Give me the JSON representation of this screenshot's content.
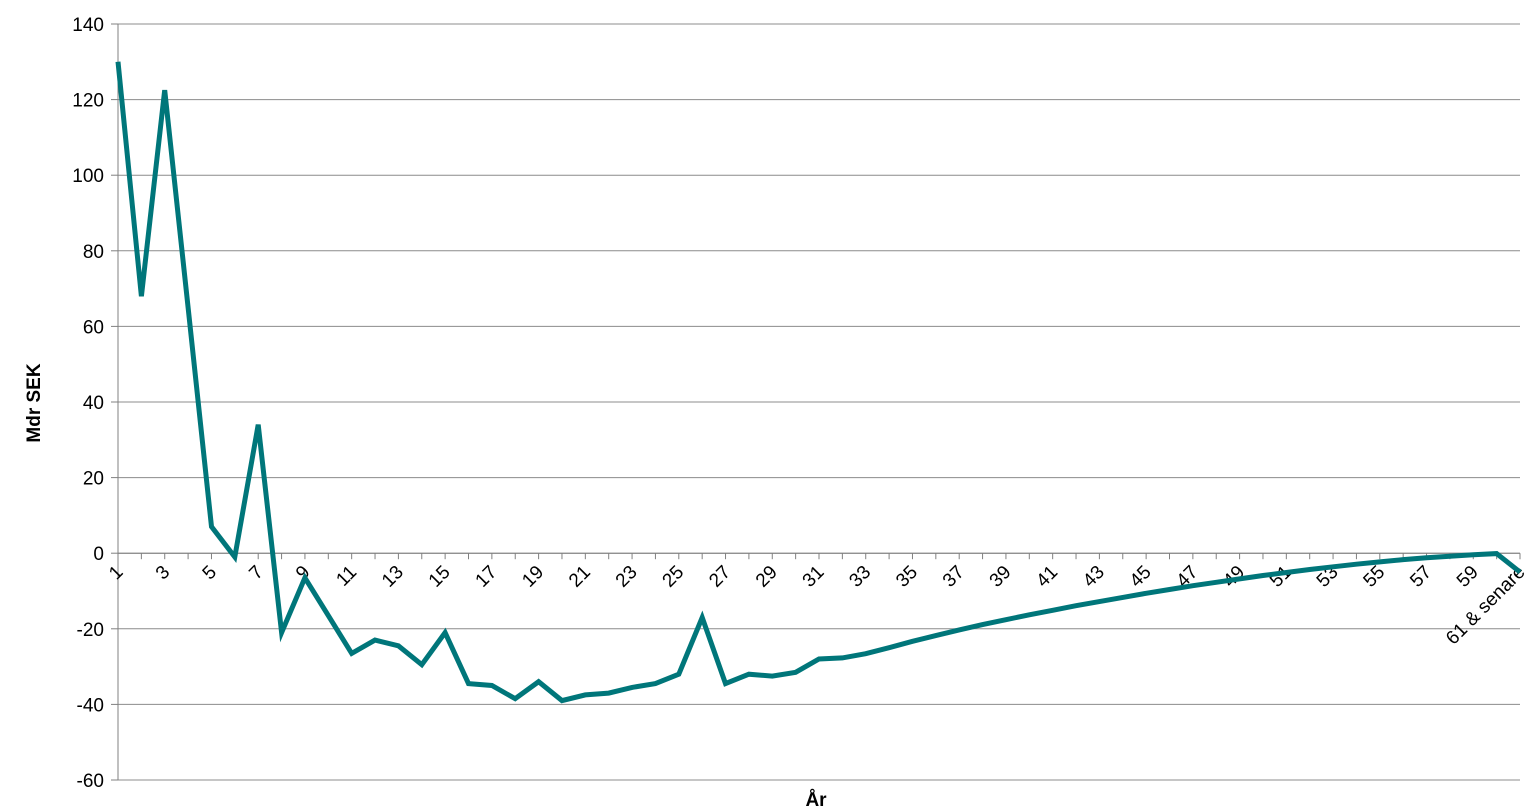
{
  "chart_data": {
    "type": "line",
    "title": "",
    "xlabel": "År",
    "ylabel": "Mdr SEK",
    "ylim": [
      -60,
      140
    ],
    "yticks": [
      140,
      120,
      100,
      80,
      60,
      40,
      20,
      0,
      -20,
      -40,
      -60
    ],
    "grid": true,
    "legend": "none",
    "colors": {
      "line": "#00767A",
      "grid": "#8C8C8C",
      "title": "#00959A",
      "axis": "#808080"
    },
    "x_tick_labels": [
      "1",
      "3",
      "5",
      "7",
      "9",
      "11",
      "13",
      "15",
      "17",
      "19",
      "21",
      "23",
      "25",
      "27",
      "29",
      "31",
      "33",
      "35",
      "37",
      "39",
      "41",
      "43",
      "45",
      "47",
      "49",
      "51",
      "53",
      "55",
      "57",
      "59",
      "61 & senare"
    ],
    "categories": [
      "1",
      "2",
      "3",
      "4",
      "5",
      "6",
      "7",
      "8",
      "9",
      "10",
      "11",
      "12",
      "13",
      "14",
      "15",
      "16",
      "17",
      "18",
      "19",
      "20",
      "21",
      "22",
      "23",
      "24",
      "25",
      "26",
      "27",
      "28",
      "29",
      "30",
      "31",
      "32",
      "33",
      "34",
      "35",
      "36",
      "37",
      "38",
      "39",
      "40",
      "41",
      "42",
      "43",
      "44",
      "45",
      "46",
      "47",
      "48",
      "49",
      "50",
      "51",
      "52",
      "53",
      "54",
      "55",
      "56",
      "57",
      "58",
      "59",
      "60",
      "61 & senare"
    ],
    "series": [
      {
        "values": [
          130,
          68,
          122.5,
          65,
          7,
          -1,
          34,
          -21,
          -6.5,
          -16.5,
          -26.5,
          -23,
          -24.5,
          -29.5,
          -21,
          -34.5,
          -35,
          -38.5,
          -34,
          -39,
          -37.5,
          -37,
          -35.5,
          -34.5,
          -32,
          -17,
          -34.5,
          -32,
          -32.5,
          -31.5,
          -28,
          -27.7,
          -26.6,
          -25,
          -23.3,
          -21.8,
          -20.3,
          -18.9,
          -17.6,
          -16.3,
          -15.1,
          -13.9,
          -12.8,
          -11.7,
          -10.6,
          -9.6,
          -8.6,
          -7.7,
          -6.8,
          -5.9,
          -5.1,
          -4.3,
          -3.6,
          -2.9,
          -2.3,
          -1.7,
          -1.2,
          -0.8,
          -0.4,
          -0.1,
          -5
        ]
      }
    ]
  }
}
